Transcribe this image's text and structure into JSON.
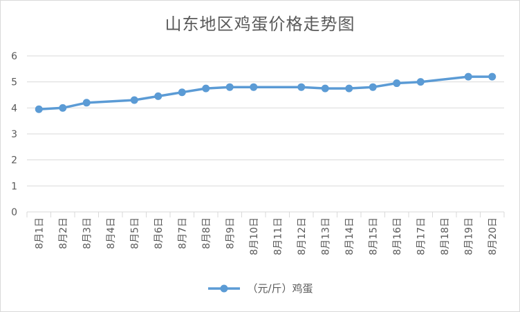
{
  "chart_data": {
    "type": "line",
    "title": "山东地区鸡蛋价格走势图",
    "categories": [
      "8月1日",
      "8月2日",
      "8月3日",
      "8月4日",
      "8月5日",
      "8月6日",
      "8月7日",
      "8月8日",
      "8月9日",
      "8月10日",
      "8月11日",
      "8月12日",
      "8月13日",
      "8月14日",
      "8月15日",
      "8月16日",
      "8月17日",
      "8月18日",
      "8月19日",
      "8月20日"
    ],
    "series": [
      {
        "name": "（元/斤）鸡蛋",
        "values": [
          3.95,
          4.0,
          4.2,
          null,
          4.3,
          4.45,
          4.6,
          4.75,
          4.8,
          4.8,
          null,
          4.8,
          4.75,
          4.75,
          4.8,
          4.95,
          5.0,
          null,
          5.2,
          5.2
        ],
        "color": "#5b9bd5"
      }
    ],
    "ylim": [
      0,
      6
    ],
    "yticks": [
      "0",
      "1",
      "2",
      "3",
      "4",
      "5",
      "6"
    ],
    "grid": true,
    "legend_position": "bottom"
  }
}
